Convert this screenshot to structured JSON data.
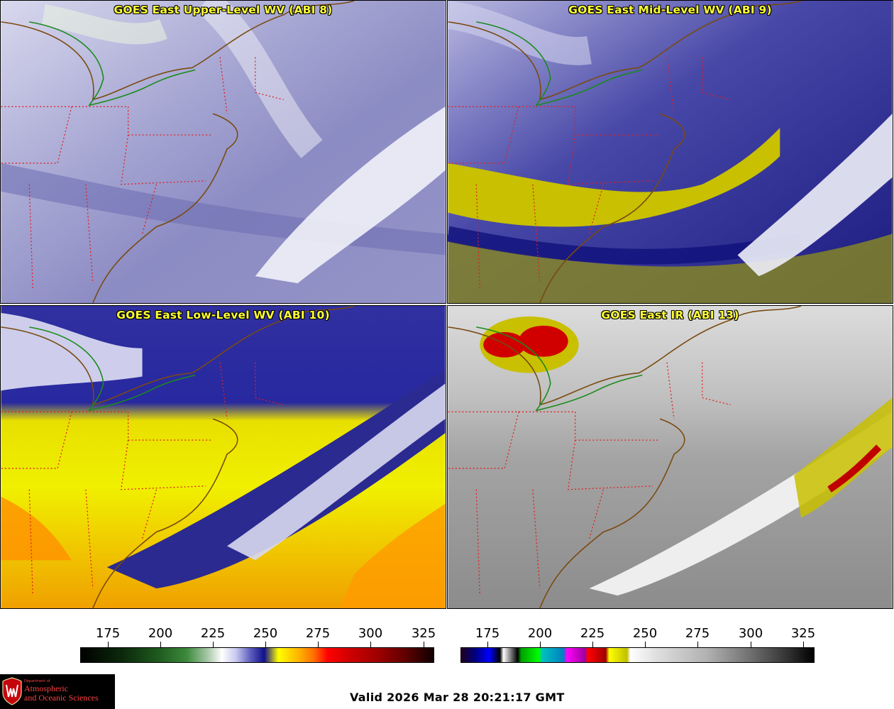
{
  "panels": [
    {
      "id": "p1",
      "title": "GOES East Upper-Level WV (ABI 8)"
    },
    {
      "id": "p2",
      "title": "GOES East Mid-Level WV (ABI 9)"
    },
    {
      "id": "p3",
      "title": "GOES East Low-Level WV (ABI 10)"
    },
    {
      "id": "p4",
      "title": "GOES East IR (ABI 13)"
    }
  ],
  "colorbars": {
    "wv": {
      "ticks": [
        "175",
        "200",
        "225",
        "250",
        "275",
        "300",
        "325"
      ]
    },
    "ir": {
      "ticks": [
        "175",
        "200",
        "225",
        "250",
        "275",
        "300",
        "325"
      ]
    }
  },
  "logo": {
    "line1": "Department of",
    "line2": "Atmospheric",
    "line3": "and Oceanic Sciences"
  },
  "valid_time": "Valid 2026 Mar 28 20:21:17 GMT",
  "colors": {
    "title_text": "#ffff33",
    "state_borders": "#e02020",
    "coastline": "#7a4a10",
    "international_border": "#1a8a1a"
  }
}
